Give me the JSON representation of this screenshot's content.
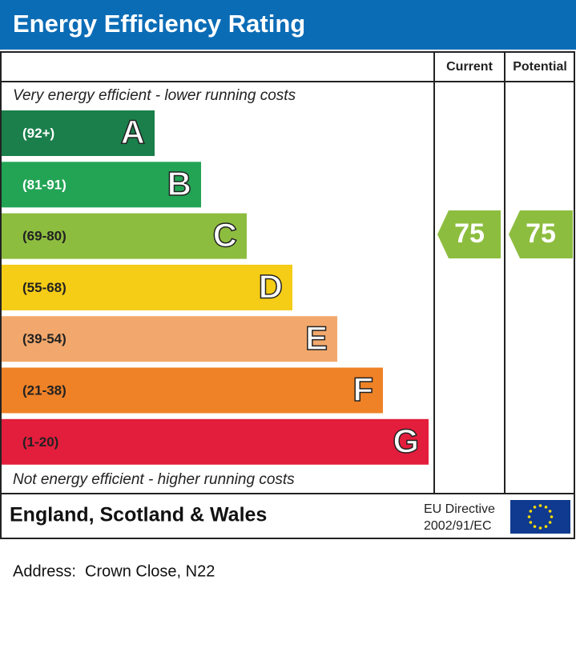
{
  "header": {
    "title": "Energy Efficiency Rating"
  },
  "columns": {
    "current": "Current",
    "potential": "Potential"
  },
  "top_note": "Very energy efficient - lower running costs",
  "bottom_note": "Not energy efficient - higher running costs",
  "bands": [
    {
      "range": "(92+)",
      "letter": "A"
    },
    {
      "range": "(81-91)",
      "letter": "B"
    },
    {
      "range": "(69-80)",
      "letter": "C"
    },
    {
      "range": "(55-68)",
      "letter": "D"
    },
    {
      "range": "(39-54)",
      "letter": "E"
    },
    {
      "range": "(21-38)",
      "letter": "F"
    },
    {
      "range": "(1-20)",
      "letter": "G"
    }
  ],
  "current": 75,
  "potential": 75,
  "footer": {
    "region": "England, Scotland & Wales",
    "directive": [
      "EU Directive",
      "2002/91/EC"
    ]
  },
  "address": "Address:  Crown Close, N22"
}
